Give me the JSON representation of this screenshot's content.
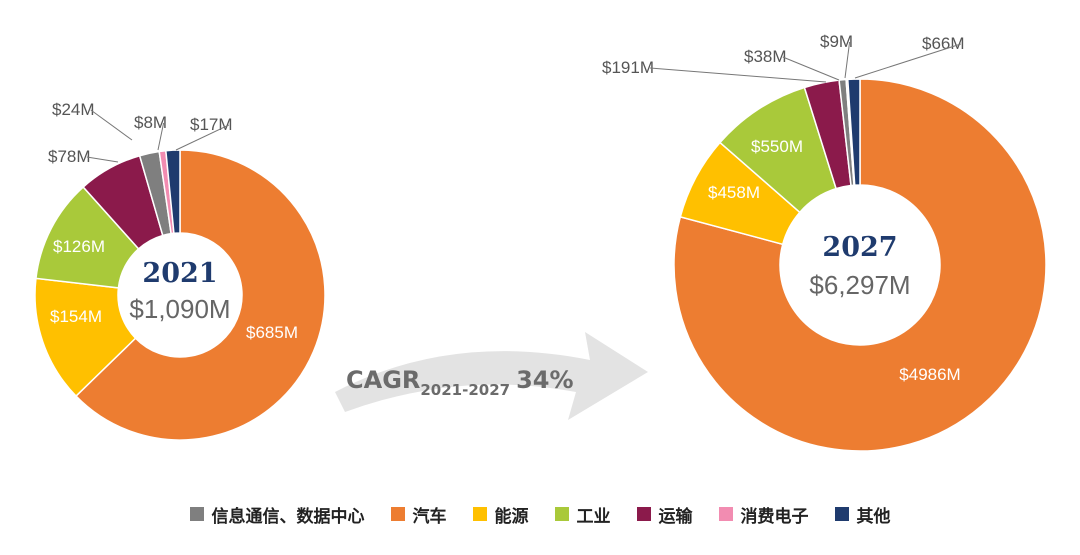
{
  "colors": {
    "信息通信、数据中心": "#7f7f7f",
    "汽车": "#ed7d31",
    "能源": "#ffc000",
    "工业": "#a9c93a",
    "运输": "#8b1a4b",
    "消费电子": "#f28cb1",
    "其他": "#1f3b6e"
  },
  "chart_data": [
    {
      "type": "pie",
      "title": "2021",
      "total_label": "$1,090M",
      "categories": [
        "汽车",
        "能源",
        "工业",
        "运输",
        "信息通信、数据中心",
        "消费电子",
        "其他"
      ],
      "values": [
        685,
        154,
        126,
        78,
        24,
        8,
        17
      ],
      "labels": [
        "$685M",
        "$154M",
        "$126M",
        "$78M",
        "$24M",
        "$8M",
        "$17M"
      ]
    },
    {
      "type": "pie",
      "title": "2027",
      "total_label": "$6,297M",
      "categories": [
        "汽车",
        "能源",
        "工业",
        "运输",
        "信息通信、数据中心",
        "消费电子",
        "其他"
      ],
      "values": [
        4986,
        458,
        550,
        191,
        38,
        9,
        66
      ],
      "labels": [
        "$4986M",
        "$458M",
        "$550M",
        "$191M",
        "$38M",
        "$9M",
        "$66M"
      ]
    }
  ],
  "cagr": {
    "main": "CAGR",
    "sub": "2021-2027",
    "value": "34%"
  },
  "legend": [
    "信息通信、数据中心",
    "汽车",
    "能源",
    "工业",
    "运输",
    "消费电子",
    "其他"
  ]
}
